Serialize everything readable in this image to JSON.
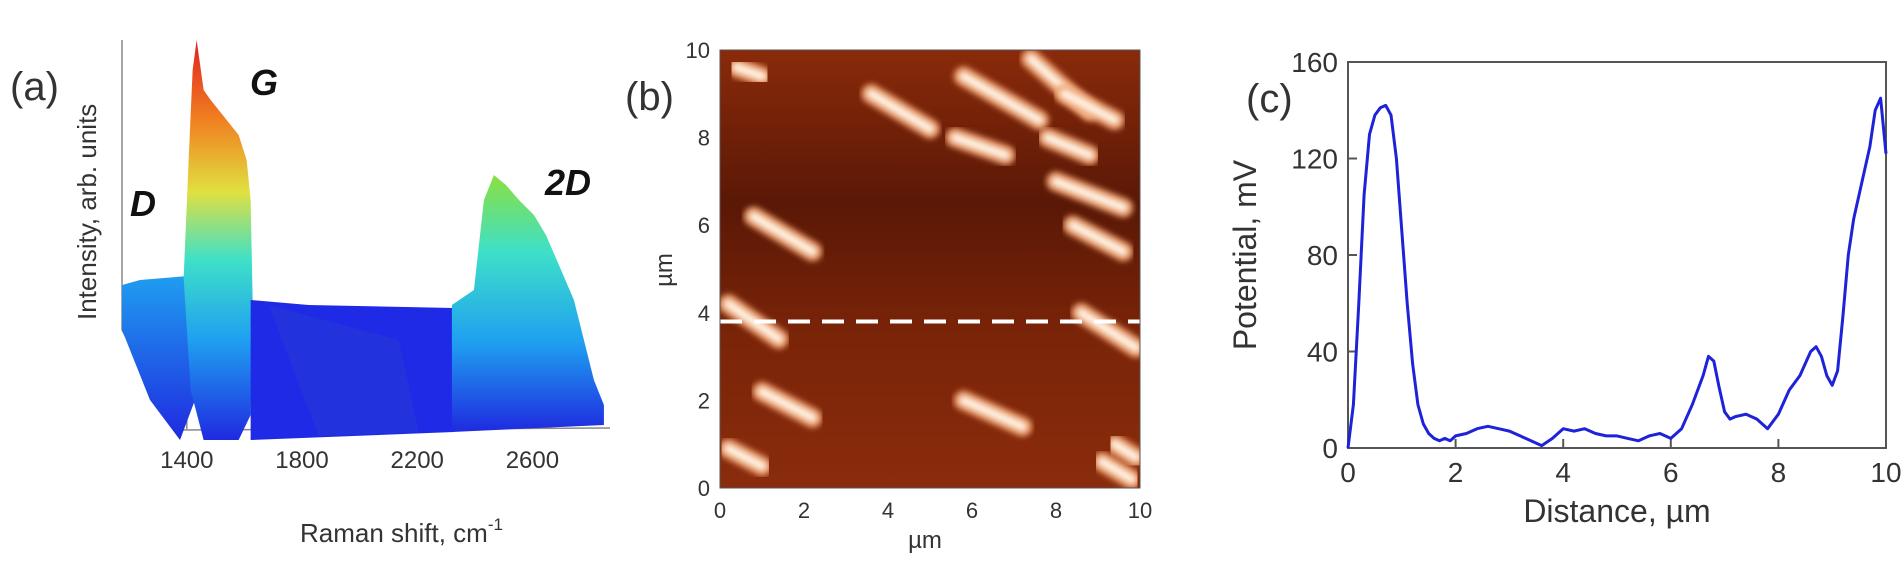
{
  "chart_data": [
    {
      "panel": "(a)",
      "type": "area",
      "xlabel": "Raman shift, cm",
      "xlabel_sup": "-1",
      "ylabel": "Intensity, arb. units",
      "x_ticks": [
        1400,
        1800,
        2200,
        2600
      ],
      "xlim": [
        1300,
        2800
      ],
      "peaks": [
        {
          "label": "D",
          "x": 1350,
          "relative_intensity": 0.28
        },
        {
          "label": "G",
          "x": 1580,
          "relative_intensity": 1.0
        },
        {
          "label": "2D",
          "x": 2690,
          "relative_intensity": 0.55
        }
      ],
      "colormap": [
        "#1f2ae0",
        "#1fa0f0",
        "#3ee0c8",
        "#e0e040",
        "#f08020",
        "#e02020"
      ]
    },
    {
      "panel": "(b)",
      "type": "heatmap",
      "xlabel": "µm",
      "ylabel": "µm",
      "x_ticks": [
        0,
        2,
        4,
        6,
        8,
        10
      ],
      "y_ticks": [
        0,
        2,
        4,
        6,
        8,
        10
      ],
      "xlim": [
        0,
        10
      ],
      "ylim": [
        0,
        10
      ],
      "line_profile_y": 3.8,
      "colormap": [
        "#4a1204",
        "#8a2a0a",
        "#c0541a",
        "#ffe8d0"
      ],
      "features": [
        {
          "x1": 0.4,
          "y1": 9.6,
          "x2": 1.0,
          "y2": 9.4
        },
        {
          "x1": 3.6,
          "y1": 9.0,
          "x2": 5.0,
          "y2": 8.2
        },
        {
          "x1": 5.8,
          "y1": 9.4,
          "x2": 7.6,
          "y2": 8.4
        },
        {
          "x1": 7.4,
          "y1": 9.8,
          "x2": 8.8,
          "y2": 8.6
        },
        {
          "x1": 8.2,
          "y1": 9.0,
          "x2": 9.4,
          "y2": 8.4
        },
        {
          "x1": 5.6,
          "y1": 8.0,
          "x2": 6.8,
          "y2": 7.6
        },
        {
          "x1": 7.8,
          "y1": 8.0,
          "x2": 8.8,
          "y2": 7.6
        },
        {
          "x1": 8.0,
          "y1": 7.0,
          "x2": 9.6,
          "y2": 6.4
        },
        {
          "x1": 8.4,
          "y1": 6.0,
          "x2": 9.6,
          "y2": 5.4
        },
        {
          "x1": 0.8,
          "y1": 6.2,
          "x2": 2.2,
          "y2": 5.4
        },
        {
          "x1": 0.2,
          "y1": 4.2,
          "x2": 1.4,
          "y2": 3.4
        },
        {
          "x1": 8.6,
          "y1": 4.0,
          "x2": 9.9,
          "y2": 3.2
        },
        {
          "x1": 1.0,
          "y1": 2.2,
          "x2": 2.2,
          "y2": 1.6
        },
        {
          "x1": 5.8,
          "y1": 2.0,
          "x2": 7.2,
          "y2": 1.4
        },
        {
          "x1": 0.2,
          "y1": 0.9,
          "x2": 1.0,
          "y2": 0.5
        },
        {
          "x1": 9.1,
          "y1": 0.6,
          "x2": 9.8,
          "y2": 0.2
        },
        {
          "x1": 9.4,
          "y1": 1.0,
          "x2": 9.9,
          "y2": 0.7
        }
      ]
    },
    {
      "panel": "(c)",
      "type": "line",
      "xlabel": "Distance, µm",
      "ylabel": "Potential, mV",
      "x_ticks": [
        0,
        2,
        4,
        6,
        8,
        10
      ],
      "y_ticks": [
        0,
        40,
        80,
        120,
        160
      ],
      "xlim": [
        0,
        10
      ],
      "ylim": [
        0,
        160
      ],
      "line_color": "#1e22d8",
      "x": [
        0,
        0.1,
        0.2,
        0.3,
        0.4,
        0.5,
        0.6,
        0.7,
        0.8,
        0.9,
        1.0,
        1.1,
        1.2,
        1.3,
        1.4,
        1.5,
        1.6,
        1.7,
        1.8,
        1.9,
        2.0,
        2.2,
        2.4,
        2.6,
        2.8,
        3.0,
        3.2,
        3.4,
        3.6,
        3.8,
        4.0,
        4.2,
        4.4,
        4.6,
        4.8,
        5.0,
        5.2,
        5.4,
        5.6,
        5.8,
        6.0,
        6.2,
        6.4,
        6.6,
        6.7,
        6.8,
        6.9,
        7.0,
        7.1,
        7.2,
        7.4,
        7.6,
        7.8,
        8.0,
        8.2,
        8.4,
        8.6,
        8.7,
        8.8,
        8.9,
        9.0,
        9.1,
        9.2,
        9.3,
        9.4,
        9.5,
        9.6,
        9.7,
        9.8,
        9.9,
        10.0
      ],
      "y": [
        0,
        18,
        60,
        105,
        130,
        138,
        141,
        142,
        138,
        120,
        90,
        60,
        35,
        18,
        10,
        6,
        4,
        3,
        4,
        3,
        5,
        6,
        8,
        9,
        8,
        7,
        5,
        3,
        1,
        4,
        8,
        7,
        8,
        6,
        5,
        5,
        4,
        3,
        5,
        6,
        4,
        8,
        18,
        30,
        38,
        36,
        25,
        15,
        12,
        13,
        14,
        12,
        8,
        14,
        24,
        30,
        40,
        42,
        38,
        30,
        26,
        32,
        55,
        80,
        95,
        105,
        115,
        125,
        140,
        145,
        122
      ]
    }
  ]
}
